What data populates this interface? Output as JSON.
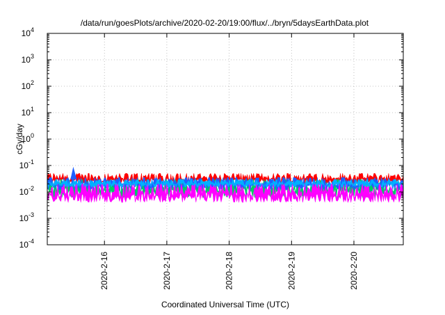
{
  "chart_data": {
    "type": "area",
    "title": "/data/run/goesPlots/archive/2020-02-20/19:00/flux/../bryn/5daysEarthData.plot",
    "xlabel": "Coordinated Universal Time (UTC)",
    "ylabel": "cGy/day",
    "yscale": "log",
    "ylim": [
      0.0001,
      10000
    ],
    "xlim": [
      "2020-02-15T02:00",
      "2020-02-20T19:00"
    ],
    "grid": true,
    "x_ticks": [
      {
        "date": "2020-02-16T00:00",
        "label": "2020-2-16"
      },
      {
        "date": "2020-02-17T00:00",
        "label": "2020-2-17"
      },
      {
        "date": "2020-02-18T00:00",
        "label": "2020-2-18"
      },
      {
        "date": "2020-02-19T00:00",
        "label": "2020-2-19"
      },
      {
        "date": "2020-02-20T00:00",
        "label": "2020-2-20"
      }
    ],
    "y_ticks": [
      {
        "value": 0.0001,
        "base": "10",
        "exp": "-4"
      },
      {
        "value": 0.001,
        "base": "10",
        "exp": "-3"
      },
      {
        "value": 0.01,
        "base": "10",
        "exp": "-2"
      },
      {
        "value": 0.1,
        "base": "10",
        "exp": "-1"
      },
      {
        "value": 1,
        "base": "10",
        "exp": "0"
      },
      {
        "value": 10,
        "base": "10",
        "exp": "1"
      },
      {
        "value": 100,
        "base": "10",
        "exp": "2"
      },
      {
        "value": 1000,
        "base": "10",
        "exp": "3"
      },
      {
        "value": 10000,
        "base": "10",
        "exp": "4"
      }
    ],
    "series": [
      {
        "color": "#ff0000",
        "low": 0.02,
        "high": 0.05
      },
      {
        "color": "#00cc66",
        "low": 0.006,
        "high": 0.03
      },
      {
        "color": "#1f5fff",
        "low": 0.012,
        "high": 0.035
      },
      {
        "color": "#00b0ff",
        "low": 0.015,
        "high": 0.03
      },
      {
        "color": "#ff00ff",
        "low": 0.004,
        "high": 0.02
      }
    ],
    "peak": {
      "date": "2020-02-15T12:00",
      "value": 0.09
    }
  }
}
